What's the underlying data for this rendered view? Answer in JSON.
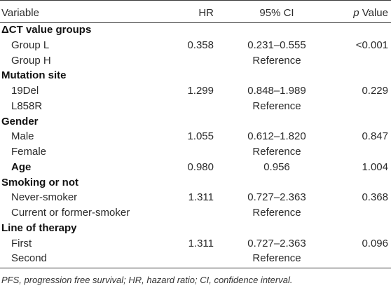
{
  "header": {
    "variable": "Variable",
    "hr": "HR",
    "ci": "95% CI",
    "p_italic": "p",
    "p_rest": " Value"
  },
  "rows": [
    {
      "label": "ΔCT value groups",
      "type": "group"
    },
    {
      "label": "Group L",
      "type": "item",
      "hr": "0.358",
      "ci": "0.231–0.555",
      "p": "<0.001"
    },
    {
      "label": "Group H",
      "type": "item",
      "ci": "Reference"
    },
    {
      "label": "Mutation site",
      "type": "group"
    },
    {
      "label": "19Del",
      "type": "item",
      "hr": "1.299",
      "ci": "0.848–1.989",
      "p": "0.229"
    },
    {
      "label": "L858R",
      "type": "item",
      "ci": "Reference"
    },
    {
      "label": "Gender",
      "type": "group"
    },
    {
      "label": "Male",
      "type": "item",
      "hr": "1.055",
      "ci": "0.612–1.820",
      "p": "0.847"
    },
    {
      "label": "Female",
      "type": "item",
      "ci": "Reference"
    },
    {
      "label": "Age",
      "type": "bold-item",
      "hr": "0.980",
      "ci": "0.956",
      "p": "1.004"
    },
    {
      "label": "Smoking or not",
      "type": "group"
    },
    {
      "label": "Never-smoker",
      "type": "item",
      "hr": "1.311",
      "ci": "0.727–2.363",
      "p": "0.368"
    },
    {
      "label": "Current or former-smoker",
      "type": "item",
      "ci": "Reference"
    },
    {
      "label": "Line of therapy",
      "type": "group"
    },
    {
      "label": "First",
      "type": "item",
      "hr": "1.311",
      "ci": "0.727–2.363",
      "p": "0.096"
    },
    {
      "label": "Second",
      "type": "item",
      "ci": "Reference"
    }
  ],
  "footnote": "PFS, progression free survival; HR, hazard ratio; CI, confidence interval."
}
